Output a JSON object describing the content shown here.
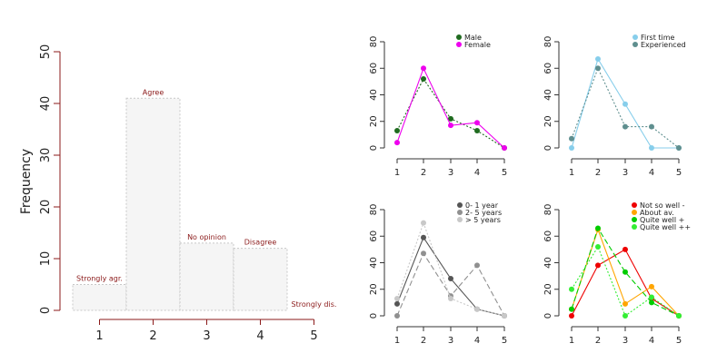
{
  "chart_data": [
    {
      "type": "bar",
      "ylabel": "Frequency",
      "categories": [
        "1",
        "2",
        "3",
        "4",
        "5"
      ],
      "bar_labels": [
        "Strongly agr.",
        "Agree",
        "No opinion",
        "Disagree",
        "Strongly dis."
      ],
      "values": [
        5,
        41,
        13,
        12,
        0
      ],
      "ylim": [
        0,
        50
      ],
      "yticks": [
        0,
        10,
        20,
        30,
        40,
        50
      ],
      "xticks": [
        "1",
        "2",
        "3",
        "4",
        "5"
      ],
      "colors": {
        "bar_fill": "#f5f5f5",
        "bar_border": "#c8c8c8",
        "axis": "#8b1a1a",
        "label": "#8b1a1a"
      }
    },
    {
      "type": "line",
      "x": [
        1,
        2,
        3,
        4,
        5
      ],
      "ylim": [
        0,
        80
      ],
      "yticks": [
        0,
        20,
        40,
        60,
        80
      ],
      "legend_position": "top-right",
      "series": [
        {
          "name": "Male",
          "values": [
            13,
            52,
            22,
            13,
            0
          ],
          "color": "#1f6b1f",
          "dash": "2,2"
        },
        {
          "name": "Female",
          "values": [
            4,
            60,
            17,
            19,
            0
          ],
          "color": "#ee00ee",
          "dash": ""
        }
      ]
    },
    {
      "type": "line",
      "x": [
        1,
        2,
        3,
        4,
        5
      ],
      "ylim": [
        0,
        80
      ],
      "yticks": [
        0,
        20,
        40,
        60,
        80
      ],
      "legend_position": "top-right",
      "series": [
        {
          "name": "First time",
          "values": [
            0,
            67,
            33,
            0,
            0
          ],
          "color": "#87ceeb",
          "dash": ""
        },
        {
          "name": "Experienced",
          "values": [
            7,
            60,
            16,
            16,
            0
          ],
          "color": "#5f8f8f",
          "dash": "2,2"
        }
      ]
    },
    {
      "type": "line",
      "x": [
        1,
        2,
        3,
        4,
        5
      ],
      "ylim": [
        0,
        80
      ],
      "yticks": [
        0,
        20,
        40,
        60,
        80
      ],
      "legend_position": "top-right",
      "series": [
        {
          "name": "0- 1 year",
          "values": [
            9,
            59,
            28,
            5,
            0
          ],
          "color": "#555555",
          "dash": ""
        },
        {
          "name": "2- 5 years",
          "values": [
            0,
            47,
            15,
            38,
            0
          ],
          "color": "#909090",
          "dash": "6,3"
        },
        {
          "name": "> 5 years",
          "values": [
            13,
            70,
            13,
            5,
            0
          ],
          "color": "#c8c8c8",
          "dash": "2,2"
        }
      ]
    },
    {
      "type": "line",
      "x": [
        1,
        2,
        3,
        4,
        5
      ],
      "ylim": [
        0,
        80
      ],
      "yticks": [
        0,
        20,
        40,
        60,
        80
      ],
      "legend_position": "top-right",
      "series": [
        {
          "name": "Not so well -",
          "values": [
            0,
            38,
            50,
            13,
            0
          ],
          "color": "#ee0000",
          "dash": ""
        },
        {
          "name": "About av.",
          "values": [
            5,
            65,
            9,
            22,
            0
          ],
          "color": "#ffa500",
          "dash": ""
        },
        {
          "name": "Quite well +",
          "values": [
            5,
            66,
            33,
            10,
            0
          ],
          "color": "#00cc00",
          "dash": "6,3"
        },
        {
          "name": "Quite well ++",
          "values": [
            20,
            52,
            0,
            14,
            0
          ],
          "color": "#33ee33",
          "dash": "2,2"
        }
      ]
    }
  ]
}
